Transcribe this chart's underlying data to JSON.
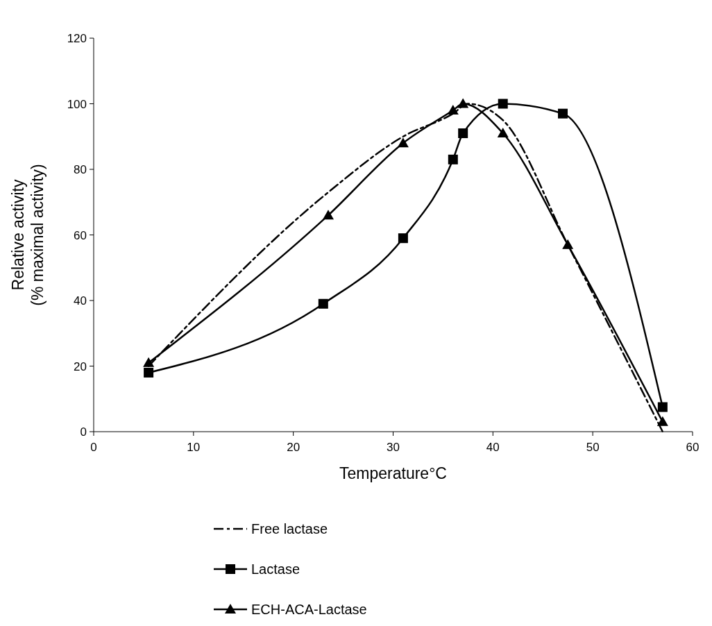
{
  "chart_data": {
    "type": "line",
    "xlabel": "Temperature°C",
    "ylabel": "Relative activity\n(% maximal activity)",
    "xlim": [
      0,
      60
    ],
    "xticks": [
      0,
      10,
      20,
      30,
      40,
      50,
      60
    ],
    "ylim": [
      0,
      120
    ],
    "yticks": [
      0,
      20,
      40,
      60,
      80,
      100,
      120
    ],
    "grid": false,
    "legend": "bottom",
    "series": [
      {
        "name": "Free lactase",
        "color": "#000000",
        "line_style": "dashed",
        "marker": "none",
        "x": [
          5.5,
          23.5,
          31,
          36,
          37.5,
          41,
          47.5,
          57
        ],
        "values": [
          20,
          73,
          90,
          97,
          100,
          95,
          57,
          0
        ]
      },
      {
        "name": "Lactase",
        "color": "#000000",
        "line_style": "solid",
        "marker": "square",
        "x": [
          5.5,
          23,
          31,
          36,
          37,
          41,
          47,
          57
        ],
        "values": [
          18,
          39,
          59,
          83,
          91,
          100,
          97,
          7.5
        ]
      },
      {
        "name": "ECH-ACA-Lactase",
        "color": "#000000",
        "line_style": "solid",
        "marker": "triangle",
        "x": [
          5.5,
          23.5,
          31,
          36,
          37,
          41,
          47.5,
          57
        ],
        "values": [
          21,
          66,
          88,
          98,
          100,
          91,
          57,
          3
        ]
      }
    ]
  }
}
